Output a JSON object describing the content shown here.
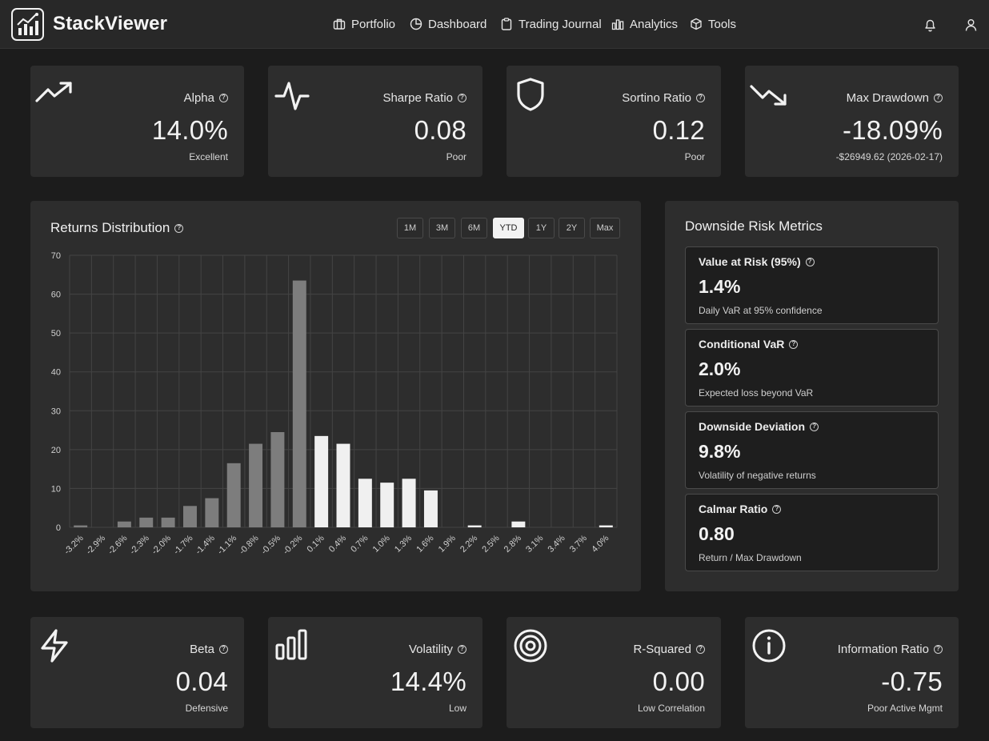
{
  "app": {
    "brand": "StackViewer"
  },
  "nav": [
    {
      "label": "Portfolio",
      "icon": "briefcase-icon"
    },
    {
      "label": "Dashboard",
      "icon": "pie-chart-icon"
    },
    {
      "label": "Trading Journal",
      "icon": "clipboard-icon"
    },
    {
      "label": "Analytics",
      "icon": "bar-chart-icon"
    },
    {
      "label": "Tools",
      "icon": "cube-icon"
    }
  ],
  "header_icons": [
    "bell-icon",
    "user-icon"
  ],
  "top_metrics": [
    {
      "label": "Alpha",
      "value": "14.0%",
      "sub": "Excellent",
      "icon": "trending-up-icon"
    },
    {
      "label": "Sharpe Ratio",
      "value": "0.08",
      "sub": "Poor",
      "icon": "activity-icon"
    },
    {
      "label": "Sortino Ratio",
      "value": "0.12",
      "sub": "Poor",
      "icon": "shield-icon"
    },
    {
      "label": "Max Drawdown",
      "value": "-18.09%",
      "sub": "-$26949.62 (2026-02-17)",
      "icon": "trending-down-icon"
    }
  ],
  "bottom_metrics": [
    {
      "label": "Beta",
      "value": "0.04",
      "sub": "Defensive",
      "icon": "lightning-icon"
    },
    {
      "label": "Volatility",
      "value": "14.4%",
      "sub": "Low",
      "icon": "bars-icon"
    },
    {
      "label": "R-Squared",
      "value": "0.00",
      "sub": "Low Correlation",
      "icon": "target-icon"
    },
    {
      "label": "Information Ratio",
      "value": "-0.75",
      "sub": "Poor Active Mgmt",
      "icon": "info-icon"
    }
  ],
  "returns_distribution": {
    "title": "Returns Distribution",
    "timeframes": [
      "1M",
      "3M",
      "6M",
      "YTD",
      "1Y",
      "2Y",
      "Max"
    ],
    "active_timeframe": "YTD"
  },
  "chart_data": {
    "type": "bar",
    "categories": [
      "-3.2%",
      "-2.9%",
      "-2.6%",
      "-2.3%",
      "-2.0%",
      "-1.7%",
      "-1.4%",
      "-1.1%",
      "-0.8%",
      "-0.5%",
      "-0.2%",
      "0.1%",
      "0.4%",
      "0.7%",
      "1.0%",
      "1.3%",
      "1.6%",
      "1.9%",
      "2.2%",
      "2.5%",
      "2.8%",
      "3.1%",
      "3.4%",
      "3.7%",
      "4.0%"
    ],
    "values": [
      0.5,
      0,
      1.5,
      2.5,
      2.5,
      5.5,
      7.5,
      16.5,
      21.5,
      24.5,
      63.5,
      23.5,
      21.5,
      12.5,
      11.5,
      12.5,
      9.5,
      0,
      0.5,
      0,
      1.5,
      0,
      0,
      0,
      0.5
    ],
    "ylim": [
      0,
      70
    ],
    "yticks": [
      0,
      10,
      20,
      30,
      40,
      50,
      60,
      70
    ],
    "grid": true,
    "colors": {
      "negative": "#7d7d7d",
      "positive": "#f0f0f0",
      "grid": "#444444",
      "axis_text": "#d0d0d0"
    }
  },
  "downside": {
    "title": "Downside Risk Metrics",
    "items": [
      {
        "label": "Value at Risk (95%)",
        "value": "1.4%",
        "sub": "Daily VaR at 95% confidence"
      },
      {
        "label": "Conditional VaR",
        "value": "2.0%",
        "sub": "Expected loss beyond VaR"
      },
      {
        "label": "Downside Deviation",
        "value": "9.8%",
        "sub": "Volatility of negative returns"
      },
      {
        "label": "Calmar Ratio",
        "value": "0.80",
        "sub": "Return / Max Drawdown"
      }
    ]
  }
}
